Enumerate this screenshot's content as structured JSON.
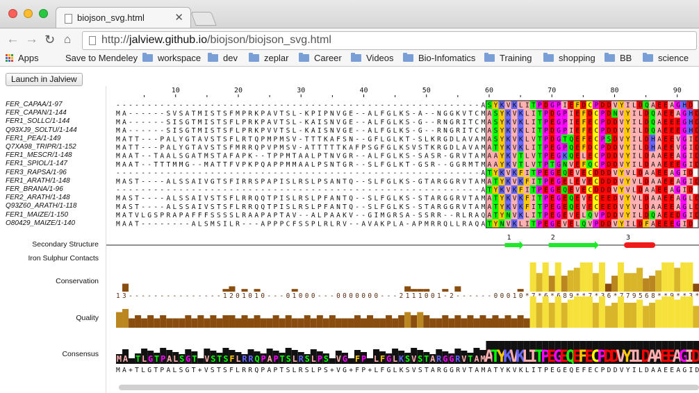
{
  "browser": {
    "tab_title": "biojson_svg.html",
    "tab_close": "✕",
    "url_prefix": "http://",
    "url_host": "jalview.github.io",
    "url_path": "/biojson/biojson_svg.html",
    "bookmarks": [
      {
        "label": "Apps",
        "type": "apps"
      },
      {
        "label": "Save to Mendeley",
        "type": "page"
      },
      {
        "label": "workspace",
        "type": "folder"
      },
      {
        "label": "dev",
        "type": "folder"
      },
      {
        "label": "zeplar",
        "type": "folder"
      },
      {
        "label": "Career",
        "type": "folder"
      },
      {
        "label": "Videos",
        "type": "folder"
      },
      {
        "label": "Bio-Infomatics",
        "type": "folder"
      },
      {
        "label": "Training",
        "type": "folder"
      },
      {
        "label": "shopping",
        "type": "folder"
      },
      {
        "label": "BB",
        "type": "folder"
      },
      {
        "label": "science",
        "type": "folder"
      }
    ]
  },
  "page": {
    "launch_button": "Launch in Jalview"
  },
  "alignment": {
    "ruler": [
      "10",
      "20",
      "30",
      "40",
      "50",
      "60",
      "70",
      "80",
      "90"
    ],
    "sequences": [
      {
        "name": "FER_CAPAA/1-97",
        "seq": "----------------------------------------------------------ASYKVKLITPDGPIEFDCPDDVYILDQAEEAGHD"
      },
      {
        "name": "FER_CAPAN/1-144",
        "seq": "MA------SVSATMISTSFMPRKPAVTSL-KPIPNVGE--ALFGLKS-A--NGGKVTCMASYKVKLITPDGPIEFDCPDNVYILDQAEEAGHD"
      },
      {
        "name": "FER1_SOLLC/1-144",
        "seq": "MA------SISGTMISTSFLPRKPAVTSL-KAISNVGE--ALFGLKS-G--RNGRITCMASYKVKLITPEGPIEFECPDDVYILDQAEEEGHD"
      },
      {
        "name": "Q93XJ9_SOLTU/1-144",
        "seq": "MA------SISGTMISTSFLPRKPVVTSL-KAISNVGE--ALFGLKS-G--RNGRITCMASYKVKLITPDGPIEFECPDDVYILDQAEEEGHD"
      },
      {
        "name": "FER1_PEA/1-149",
        "seq": "MATT---PALYGTAVSTSFLRTQPMPMSV-TTTKAFSN--GFLGLKT-SLKRGDLAVAMASYKVKLVTPDGTQEFECPSDVYILDHAEEVGID"
      },
      {
        "name": "Q7XA98_TRIPR/1-152",
        "seq": "MATT---PALYGTAVSTSFMRRQPVPMSV-ATTTTTKAFPSGFGLKSVSTKRGDLAVAMATYKVKLITPEGPQEFDCPDDVYILDHAEEVGID"
      },
      {
        "name": "FER1_MESCR/1-148",
        "seq": "MAAT--TAALSGATMSTAFAPK--TPPMTAALPTNVGR--ALFGLKS-SASR-GRVTAMAAYKVTLVTPEGKQELECPDDVYILDAAEEAGID"
      },
      {
        "name": "FER1_SPIOL/1-147",
        "seq": "MAAT--TTTMMG--MATTFVPKPQAPPMMAALPSNTGR--SLFGLKT-GSR--GGRMTMAAYKVTLVTPTGNVEFQCPDDVYILDAAEEEGID"
      },
      {
        "name": "FER3_RAPSA/1-96",
        "seq": "----------------------------------------------------------ATYKVKFITPEGEQEVECDDDVYVLDAAEEAGID"
      },
      {
        "name": "FER1_ARATH/1-148",
        "seq": "MAST----ALSSAIVGTSFIRRSPAPISLRSLPSANTQ--SLFGLKS-GTARGGRVTAMATYKVKFITPEGELEVECDDDVYVLDAAEEAGID"
      },
      {
        "name": "FER_BRANA/1-96",
        "seq": "----------------------------------------------------------ATYKVKFITPEGEQEVECDDDVYVLDAAEEAGID"
      },
      {
        "name": "FER2_ARATH/1-148",
        "seq": "MAST----ALSSAIVSTSFLRRQQTPISLRSLPFANTQ--SLFGLKS-STARGGRVTAMATYKVKFITPEGEQEVECEEDVYVLDAAEEAGLD"
      },
      {
        "name": "Q93Z60_ARATH/1-118",
        "seq": "MAST----ALSSAIVSTSFLRRQQTPISLRSLPFANTQ--SLFGLKS-STARGGRVTAMATYKVKFITPEGEQEVECEEDVYVLDAAEEAGLD"
      },
      {
        "name": "FER1_MAIZE/1-150",
        "seq": "MATVLGSPRAPAFFFSSSSLRAAPAPTAV--ALPAAKV--GIMGRSA-SSRR--RLRAQATYNVKLITPEGEVELQVPDDVYILDQAEEDGID"
      },
      {
        "name": "O80429_MAIZE/1-140",
        "seq": "MAAT--------ALSMSILR---APPPCFSSPLRLRV--AVAKPLA-APMRRQLLRAQATYNVKLITPEGEVELQVPDDVYILDFAEEEGID"
      }
    ],
    "annotations": {
      "secondary_structure": {
        "label": "Secondary Structure",
        "elements": [
          {
            "label": "1",
            "type": "strand",
            "start": 63,
            "end": 65
          },
          {
            "label": "2",
            "type": "strand",
            "start": 70,
            "end": 77
          },
          {
            "label": "3",
            "type": "helix",
            "start": 82,
            "end": 86
          }
        ]
      },
      "iron_sulphur": {
        "label": "Iron Sulphur Contacts"
      },
      "conservation": {
        "label": "Conservation",
        "digits": "13---------------1201010---01000---0000000---2111001-2------00010*7*6*689**7*36*779568**9**3***3*59",
        "values": [
          0,
          3,
          0,
          0,
          0,
          0,
          0,
          0,
          0,
          0,
          0,
          0,
          0,
          0,
          0,
          0,
          0,
          1,
          2,
          0,
          1,
          0,
          1,
          0,
          0,
          0,
          0,
          0,
          1,
          0,
          0,
          0,
          0,
          0,
          0,
          0,
          0,
          0,
          0,
          0,
          0,
          0,
          0,
          0,
          0,
          0,
          2,
          1,
          1,
          1,
          0,
          0,
          1,
          0,
          2,
          0,
          0,
          0,
          0,
          0,
          0,
          0,
          0,
          0,
          1,
          0,
          11,
          7,
          11,
          6,
          11,
          6,
          8,
          9,
          11,
          11,
          7,
          11,
          3,
          6,
          11,
          7,
          7,
          9,
          5,
          6,
          8,
          11,
          11,
          9,
          11,
          11,
          3,
          11,
          11,
          11,
          3,
          11,
          5,
          9
        ]
      },
      "quality": {
        "label": "Quality",
        "values": [
          5,
          6,
          3,
          4,
          3,
          4,
          3,
          4,
          3,
          3,
          3,
          4,
          3,
          4,
          3,
          4,
          3,
          4,
          4,
          3,
          4,
          3,
          4,
          3,
          3,
          4,
          3,
          4,
          3,
          3,
          4,
          3,
          4,
          3,
          4,
          3,
          3,
          3,
          4,
          3,
          4,
          3,
          3,
          4,
          3,
          4,
          5,
          4,
          5,
          4,
          3,
          3,
          4,
          3,
          4,
          3,
          4,
          3,
          4,
          3,
          4,
          3,
          4,
          3,
          4,
          3,
          10,
          8,
          10,
          8,
          10,
          8,
          9,
          10,
          10,
          10,
          8,
          10,
          7,
          8,
          10,
          8,
          8,
          9,
          7,
          8,
          9,
          10,
          10,
          9,
          10,
          10,
          7,
          10,
          10,
          10,
          7,
          10,
          8,
          9
        ]
      },
      "consensus": {
        "label": "Consensus",
        "sequence": "MA+TLGTPALSGT+VSTSFLRRQPAPTSLRSLPS+VG+FP+LFGLKSVSTARGGRVTAMATYKVKLITPEGEQEFECPDDVYILDAAEEAGID"
      }
    }
  }
}
